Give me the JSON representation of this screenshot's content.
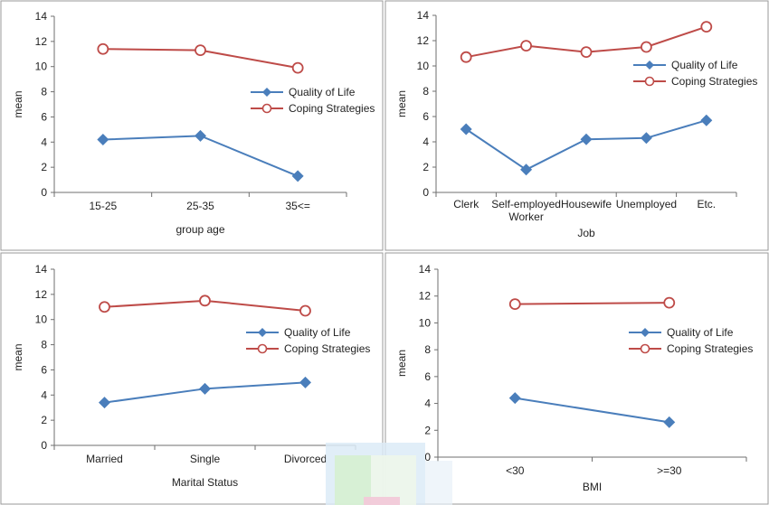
{
  "chart_data": [
    {
      "type": "line",
      "categories": [
        "15-25",
        "25-35",
        "35<="
      ],
      "series": [
        {
          "name": "Quality of Life",
          "values": [
            4.2,
            4.5,
            1.3
          ],
          "color": "#4a7ebb",
          "marker": "diamond"
        },
        {
          "name": "Coping Strategies",
          "values": [
            11.4,
            11.3,
            9.9
          ],
          "color": "#be4b48",
          "marker": "open-circle"
        }
      ],
      "xlabel": "group age",
      "ylabel": "mean",
      "ylim": [
        0,
        14
      ],
      "yticks": [
        "0",
        "2",
        "4",
        "6",
        "8",
        "10",
        "12",
        "14"
      ],
      "grid": false,
      "legend": "right"
    },
    {
      "type": "line",
      "categories": [
        "Clerk",
        "Self-employed\nWorker",
        "Housewife",
        "Unemployed",
        "Etc."
      ],
      "series": [
        {
          "name": "Quality of Life",
          "values": [
            5.0,
            1.8,
            4.2,
            4.3,
            5.7
          ],
          "color": "#4a7ebb",
          "marker": "diamond"
        },
        {
          "name": "Coping Strategies",
          "values": [
            10.7,
            11.6,
            11.1,
            11.5,
            13.1
          ],
          "color": "#be4b48",
          "marker": "open-circle"
        }
      ],
      "xlabel": "Job",
      "ylabel": "mean",
      "ylim": [
        0,
        14
      ],
      "yticks": [
        "0",
        "2",
        "4",
        "6",
        "8",
        "10",
        "12",
        "14"
      ],
      "grid": false,
      "legend": "top-right"
    },
    {
      "type": "line",
      "categories": [
        "Married",
        "Single",
        "Divorced"
      ],
      "series": [
        {
          "name": "Quality of Life",
          "values": [
            3.4,
            4.5,
            5.0
          ],
          "color": "#4a7ebb",
          "marker": "diamond"
        },
        {
          "name": "Coping Strategies",
          "values": [
            11.0,
            11.5,
            10.7
          ],
          "color": "#be4b48",
          "marker": "open-circle"
        }
      ],
      "xlabel": "Marital Status",
      "ylabel": "mean",
      "ylim": [
        0,
        14
      ],
      "yticks": [
        "0",
        "2",
        "4",
        "6",
        "8",
        "10",
        "12",
        "14"
      ],
      "grid": false,
      "legend": "right"
    },
    {
      "type": "line",
      "categories": [
        "<30",
        ">=30"
      ],
      "series": [
        {
          "name": "Quality of Life",
          "values": [
            4.4,
            2.6
          ],
          "color": "#4a7ebb",
          "marker": "diamond"
        },
        {
          "name": "Coping Strategies",
          "values": [
            11.4,
            11.5
          ],
          "color": "#be4b48",
          "marker": "open-circle"
        }
      ],
      "xlabel": "BMI",
      "ylabel": "mean",
      "ylim": [
        0,
        14
      ],
      "yticks": [
        "0",
        "2",
        "4",
        "6",
        "8",
        "10",
        "12",
        "14"
      ],
      "grid": false,
      "legend": "right"
    }
  ]
}
